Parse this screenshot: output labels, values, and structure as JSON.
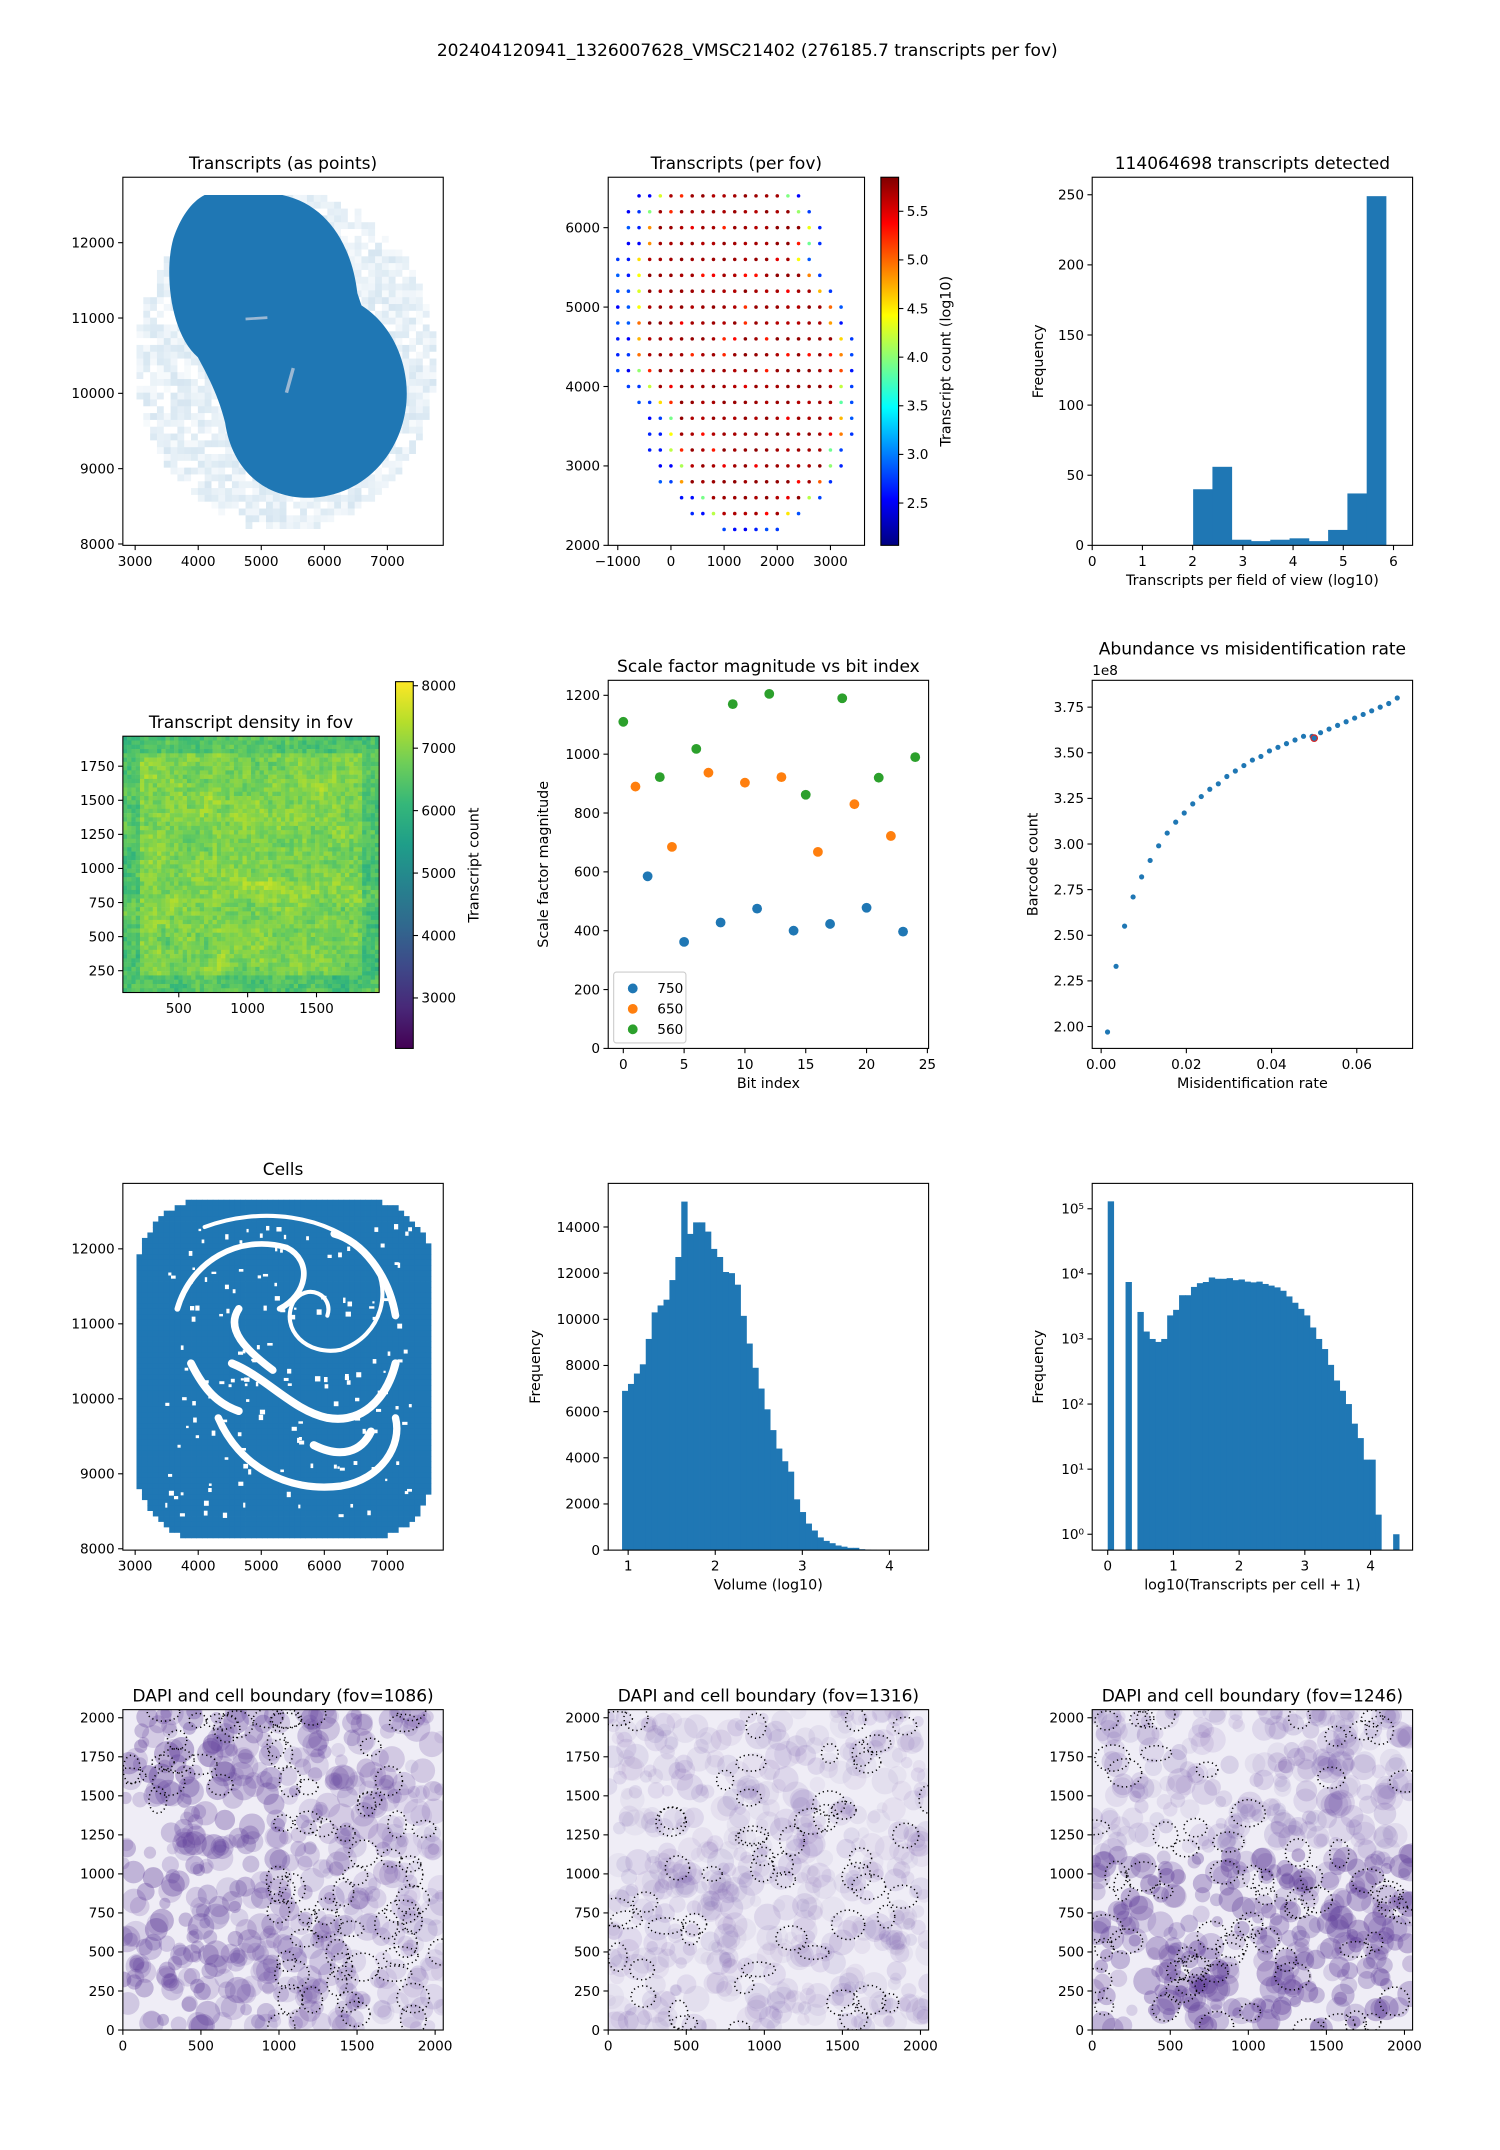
{
  "suptitle": "202404120941_1326007628_VMSC21402 (276185.7 transcripts per fov)",
  "chart_data": [
    {
      "type": "scatter",
      "title": "Transcripts (as points)",
      "xlabel": "",
      "ylabel": "",
      "color": "#1f77b4",
      "xlim": [
        2805,
        7886
      ],
      "ylim": [
        7982,
        12869
      ],
      "xticks": [
        "3000",
        "4000",
        "5000",
        "6000",
        "7000"
      ],
      "yticks": [
        "8000",
        "9000",
        "10000",
        "11000",
        "12000"
      ]
    },
    {
      "type": "scatter",
      "title": "Transcripts (per fov)",
      "xlabel": "",
      "ylabel": "",
      "colormap": "jet",
      "xlim": [
        -1180,
        3641
      ],
      "ylim": [
        2000,
        6635
      ],
      "xticks": [
        "−1000",
        "0",
        "1000",
        "2000",
        "3000"
      ],
      "yticks": [
        "2000",
        "3000",
        "4000",
        "5000",
        "6000"
      ],
      "colorbar": {
        "label": "Transcript count (log10)",
        "range": [
          2.065,
          5.85
        ],
        "ticks": [
          "2.5",
          "3.0",
          "3.5",
          "4.0",
          "4.5",
          "5.0",
          "5.5"
        ]
      },
      "rows": [
        [
          6400,
          -600,
          2400
        ],
        [
          6200,
          -800,
          2600
        ],
        [
          6000,
          -800,
          2800
        ],
        [
          5800,
          -800,
          2800
        ],
        [
          5600,
          -1000,
          2600
        ],
        [
          5400,
          -1000,
          2800
        ],
        [
          5200,
          -1000,
          3000
        ],
        [
          5000,
          -1000,
          3200
        ],
        [
          4800,
          -1000,
          3200
        ],
        [
          4600,
          -1000,
          3400
        ],
        [
          4400,
          -1000,
          3400
        ],
        [
          4200,
          -1000,
          3400
        ],
        [
          4000,
          -800,
          3400
        ],
        [
          3800,
          -600,
          3400
        ],
        [
          3600,
          -400,
          3400
        ],
        [
          3400,
          -400,
          3400
        ],
        [
          3200,
          -400,
          3200
        ],
        [
          3000,
          -200,
          3200
        ],
        [
          2800,
          -200,
          3000
        ],
        [
          2600,
          200,
          2800
        ],
        [
          2400,
          400,
          2400
        ],
        [
          2200,
          1000,
          2000
        ]
      ],
      "fov_spacing": 200
    },
    {
      "type": "bar",
      "title": "114064698 transcripts detected",
      "xlabel": "Transcripts per field of view (log10)",
      "ylabel": "Frequency",
      "xlim": [
        0,
        6.38
      ],
      "ylim": [
        0,
        262.5
      ],
      "color": "#1f77b4",
      "xticks": [
        "0",
        "1",
        "2",
        "3",
        "4",
        "5",
        "6"
      ],
      "yticks": [
        "0",
        "50",
        "100",
        "150",
        "200",
        "250"
      ],
      "bin_start": 2.01,
      "bin_width": 0.384,
      "counts": [
        40,
        56,
        4,
        3,
        4,
        5,
        3,
        11,
        37,
        249
      ]
    },
    {
      "type": "heatmap",
      "title": "Transcript density in fov",
      "xlabel": "",
      "ylabel": "",
      "colormap": "viridis",
      "xlim": [
        94,
        1955
      ],
      "ylim": [
        90,
        1970
      ],
      "xticks": [
        "500",
        "1000",
        "1500"
      ],
      "yticks": [
        "250",
        "500",
        "750",
        "1000",
        "1250",
        "1500",
        "1750"
      ],
      "value_mean": 6900,
      "value_spread": 700,
      "colorbar": {
        "label": "Transcript count",
        "range": [
          2192,
          8065
        ],
        "ticks": [
          "3000",
          "4000",
          "5000",
          "6000",
          "7000",
          "8000"
        ]
      }
    },
    {
      "type": "scatter",
      "title": "Scale factor magnitude vs bit index",
      "xlabel": "Bit index",
      "ylabel": "Scale factor magnitude",
      "xlim": [
        -1.24,
        25.1
      ],
      "ylim": [
        0,
        1251
      ],
      "xticks": [
        "0",
        "5",
        "10",
        "15",
        "20",
        "25"
      ],
      "yticks": [
        "0",
        "200",
        "400",
        "600",
        "800",
        "1000",
        "1200"
      ],
      "legend": {
        "position": "lower-left"
      },
      "series": [
        {
          "name": "750",
          "color": "#1f77b4",
          "x": [
            2,
            5,
            8,
            11,
            14,
            17,
            20,
            23
          ],
          "y": [
            585,
            362,
            428,
            475,
            400,
            423,
            478,
            397
          ]
        },
        {
          "name": "650",
          "color": "#ff7f0e",
          "x": [
            1,
            4,
            7,
            10,
            13,
            16,
            19,
            22
          ],
          "y": [
            890,
            685,
            937,
            903,
            922,
            668,
            830,
            722
          ]
        },
        {
          "name": "560",
          "color": "#2ca02c",
          "x": [
            0,
            3,
            6,
            9,
            12,
            15,
            18,
            21,
            24
          ],
          "y": [
            1110,
            922,
            1018,
            1170,
            1205,
            862,
            1190,
            920,
            990
          ]
        }
      ]
    },
    {
      "type": "scatter",
      "title": "Abundance vs misidentification rate",
      "xlabel": "Misidentification rate",
      "ylabel": "Barcode count",
      "offset_text": "1e8",
      "xlim": [
        -0.0021,
        0.0731
      ],
      "ylim": [
        1.88,
        3.897
      ],
      "xticks": [
        "0.00",
        "0.02",
        "0.04",
        "0.06"
      ],
      "yticks": [
        "2.00",
        "2.25",
        "2.50",
        "2.75",
        "3.00",
        "3.25",
        "3.50",
        "3.75"
      ],
      "color": "#1f77b4",
      "highlight": {
        "x": 0.05,
        "y": 3.58,
        "color": "#d62728"
      },
      "x": [
        0.0015,
        0.0035,
        0.0055,
        0.0075,
        0.0095,
        0.0115,
        0.0135,
        0.0155,
        0.0175,
        0.0195,
        0.0215,
        0.0235,
        0.0255,
        0.0275,
        0.0295,
        0.0315,
        0.0335,
        0.0355,
        0.0375,
        0.0395,
        0.0415,
        0.0435,
        0.0455,
        0.0475,
        0.0495,
        0.0515,
        0.0535,
        0.0555,
        0.0575,
        0.0595,
        0.0615,
        0.0635,
        0.0655,
        0.0675,
        0.0695
      ],
      "y": [
        1.97,
        2.33,
        2.55,
        2.71,
        2.82,
        2.91,
        2.99,
        3.06,
        3.12,
        3.17,
        3.22,
        3.26,
        3.3,
        3.33,
        3.37,
        3.4,
        3.43,
        3.46,
        3.48,
        3.51,
        3.53,
        3.55,
        3.57,
        3.59,
        3.59,
        3.61,
        3.63,
        3.65,
        3.67,
        3.69,
        3.71,
        3.73,
        3.75,
        3.77,
        3.8
      ]
    },
    {
      "type": "scatter",
      "title": "Cells",
      "xlabel": "",
      "ylabel": "",
      "color": "#1f77b4",
      "xlim": [
        2805,
        7886
      ],
      "ylim": [
        7982,
        12873
      ],
      "xticks": [
        "3000",
        "4000",
        "5000",
        "6000",
        "7000"
      ],
      "yticks": [
        "8000",
        "9000",
        "10000",
        "11000",
        "12000"
      ]
    },
    {
      "type": "bar",
      "title": "",
      "xlabel": "Volume (log10)",
      "ylabel": "Frequency",
      "xlim": [
        0.771,
        4.45
      ],
      "ylim": [
        0,
        15889
      ],
      "color": "#1f77b4",
      "xticks": [
        "1",
        "2",
        "3",
        "4"
      ],
      "yticks": [
        "0",
        "2000",
        "4000",
        "6000",
        "8000",
        "10000",
        "12000",
        "14000"
      ],
      "bin_start": 0.93,
      "bin_width": 0.068,
      "counts": [
        6900,
        7200,
        7650,
        8050,
        9150,
        10300,
        10600,
        10850,
        11700,
        12700,
        15100,
        13700,
        14200,
        14200,
        13800,
        13050,
        12700,
        12050,
        12000,
        11500,
        10150,
        8950,
        7900,
        7000,
        6100,
        5200,
        4400,
        3850,
        3400,
        2200,
        1650,
        1150,
        850,
        550,
        400,
        300,
        200,
        150,
        100,
        100,
        40,
        20,
        10,
        5,
        3,
        2,
        1
      ]
    },
    {
      "type": "bar",
      "title": "",
      "xlabel": "log10(Transcripts per cell + 1)",
      "ylabel": "Frequency",
      "yscale": "log",
      "xlim": [
        -0.236,
        4.64
      ],
      "ylim_log10": [
        -0.244,
        5.39
      ],
      "color": "#1f77b4",
      "xticks": [
        "0",
        "1",
        "2",
        "3",
        "4"
      ],
      "yticks": [
        "10⁰",
        "10¹",
        "10²",
        "10³",
        "10⁴",
        "10⁵"
      ],
      "bin_start": 0,
      "bin_width": 0.0905,
      "counts": [
        130000,
        0,
        0,
        7500,
        0,
        2600,
        1300,
        1000,
        900,
        1000,
        2300,
        2800,
        4700,
        4700,
        6300,
        7200,
        7500,
        8800,
        8400,
        8400,
        8600,
        8000,
        8200,
        7600,
        7400,
        7600,
        7000,
        6600,
        6200,
        5500,
        4500,
        3600,
        2900,
        2300,
        1500,
        1000,
        700,
        400,
        230,
        160,
        100,
        50,
        30,
        14,
        14,
        2,
        0,
        0,
        1
      ]
    },
    {
      "type": "image",
      "title": "DAPI and cell boundary (fov=1086)",
      "xlim": [
        0,
        2052
      ],
      "ylim": [
        0,
        2052
      ],
      "xticks": [
        "0",
        "500",
        "1000",
        "1500",
        "2000"
      ],
      "yticks": [
        "0",
        "250",
        "500",
        "750",
        "1000",
        "1250",
        "1500",
        "1750",
        "2000"
      ]
    },
    {
      "type": "image",
      "title": "DAPI and cell boundary (fov=1316)",
      "xlim": [
        0,
        2052
      ],
      "ylim": [
        0,
        2052
      ],
      "xticks": [
        "0",
        "500",
        "1000",
        "1500",
        "2000"
      ],
      "yticks": [
        "0",
        "250",
        "500",
        "750",
        "1000",
        "1250",
        "1500",
        "1750",
        "2000"
      ]
    },
    {
      "type": "image",
      "title": "DAPI and cell boundary (fov=1246)",
      "xlim": [
        0,
        2052
      ],
      "ylim": [
        0,
        2052
      ],
      "xticks": [
        "0",
        "500",
        "1000",
        "1500",
        "2000"
      ],
      "yticks": [
        "0",
        "250",
        "500",
        "750",
        "1000",
        "1250",
        "1500",
        "1750",
        "2000"
      ]
    }
  ]
}
